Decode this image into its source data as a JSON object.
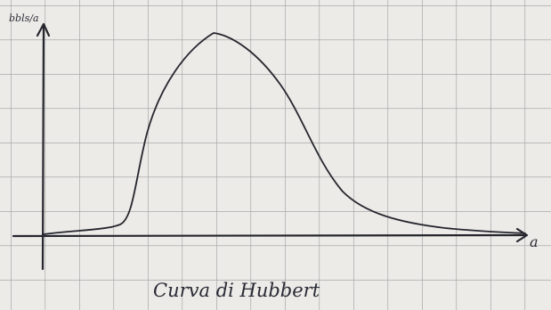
{
  "y_axis_label": "bbls/a",
  "x_axis_label": "a",
  "caption": "Curva di Hubbert"
}
